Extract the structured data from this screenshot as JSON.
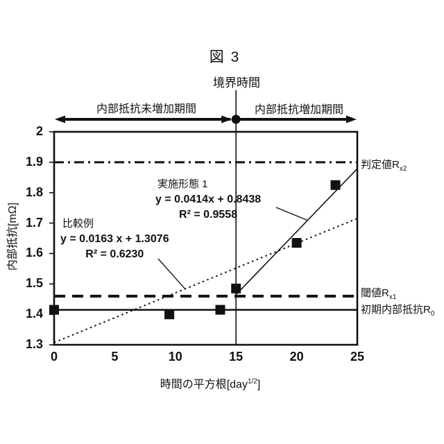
{
  "figure": {
    "title": "図 3",
    "boundary_label": "境界時間",
    "period_left": "内部抵抗未増加期間",
    "period_right": "内部抵抗増加期間"
  },
  "axes": {
    "y_title": "内部抵抗[mΩ]",
    "x_title_pre": "時間の平方根[day",
    "x_title_sup": "1/2",
    "x_title_post": "]"
  },
  "annotations": {
    "embodiment": {
      "name": "実施形態 1",
      "equation": "y = 0.0414x + 0.8438",
      "r_squared": "R² = 0.9558"
    },
    "comparative": {
      "name": "比較例",
      "equation": "y = 0.0163 x + 1.3076",
      "r_squared": "R² = 0.6230"
    }
  },
  "reference_labels": {
    "judgment": {
      "base": "判定値R",
      "sub": "x2"
    },
    "threshold": {
      "base": "閾値R",
      "sub": "x1"
    },
    "initial": {
      "base": "初期内部抵抗R",
      "sub": "0"
    }
  },
  "colors": {
    "ink": "#111111",
    "background": "#ffffff"
  },
  "chart_data": {
    "type": "scatter",
    "title": "図 3",
    "xlabel": "時間の平方根[day1/2]",
    "ylabel": "内部抵抗[mΩ]",
    "xlim": [
      0,
      25
    ],
    "ylim": [
      1.3,
      2
    ],
    "xticks": [
      0,
      5,
      10,
      15,
      20,
      25
    ],
    "yticks": [
      2,
      1.9,
      1.8,
      1.7,
      1.6,
      1.5,
      1.4,
      1.3
    ],
    "grid": false,
    "legend_position": "none",
    "points": [
      [
        0,
        1.415
      ],
      [
        9.5,
        1.4
      ],
      [
        13.7,
        1.415
      ],
      [
        15,
        1.485
      ],
      [
        20,
        1.635
      ],
      [
        23.2,
        1.825
      ]
    ],
    "fit_lines": [
      {
        "name": "実施形態 1",
        "slope": 0.0414,
        "intercept": 0.8438,
        "r2": 0.9558,
        "x_range": [
          15,
          25
        ],
        "style": "solid"
      },
      {
        "name": "比較例",
        "slope": 0.0163,
        "intercept": 1.3076,
        "r2": 0.623,
        "x_range": [
          0,
          25
        ],
        "style": "dotted"
      }
    ],
    "reference_lines": [
      {
        "label": "判定値Rx2",
        "y": 1.9,
        "style": "dash-dot"
      },
      {
        "label": "閾値Rx1",
        "y": 1.46,
        "style": "dashed"
      },
      {
        "label": "初期内部抵抗R0",
        "y": 1.415,
        "style": "solid"
      }
    ],
    "boundary": {
      "label": "境界時間",
      "x": 15
    }
  }
}
